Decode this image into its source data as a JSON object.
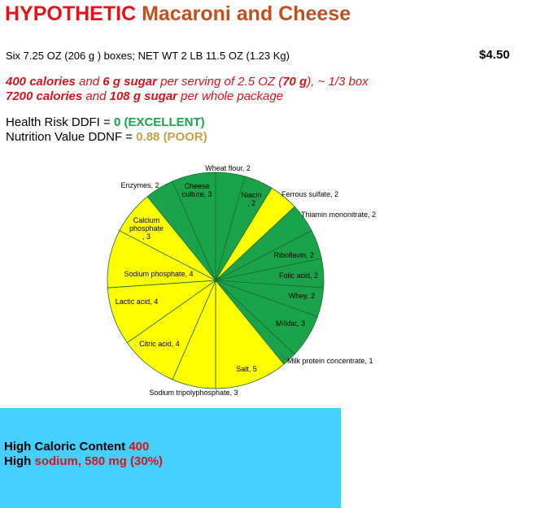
{
  "header": {
    "title_part1": "HYPOTHETIC",
    "title_part2": "Macaroni and Cheese",
    "package": "Six 7.25 OZ (206 g ) boxes;  NET WT 2 LB 11.5 OZ (1.23 Kg)",
    "price": "$4.50"
  },
  "calories": {
    "serving_cal": "400 calories",
    "serving_and": " and ",
    "serving_sugar": "6 g sugar",
    "serving_rest1": " per serving of  2.5 OZ  (",
    "serving_grams": "70 g",
    "serving_rest2": "), ~ 1/3 box",
    "package_cal": "7200 calories",
    "package_and": " and ",
    "package_sugar": "108 g sugar",
    "package_rest": " per whole package"
  },
  "scores": {
    "risk_label": "Health Risk DDFI = ",
    "risk_value": "0 (EXCELLENT)",
    "nutrition_label": "Nutrition Value DDNF = ",
    "nutrition_value": "0.88 (POOR)"
  },
  "colors": {
    "green": "#1aa34a",
    "yellow": "#ffff00",
    "panel": "#45cfff",
    "red": "#d4151b",
    "gold": "#c3a24a",
    "title_red": "#e8111a",
    "title_brown": "#c0501f"
  },
  "chart_data": {
    "type": "pie",
    "slices": [
      {
        "label": "Wheat flour, 2",
        "value": 2,
        "color": "green"
      },
      {
        "label": "Niacin, 2",
        "value": 2,
        "color": "green"
      },
      {
        "label": "Ferrous sulfate, 2",
        "value": 2,
        "color": "yellow"
      },
      {
        "label": "Thiamin mononitrate, 2",
        "value": 2,
        "color": "green"
      },
      {
        "label": "Riboflavin, 2",
        "value": 2,
        "color": "green"
      },
      {
        "label": "Folic acid, 2",
        "value": 2,
        "color": "green"
      },
      {
        "label": "Whey, 2",
        "value": 2,
        "color": "green"
      },
      {
        "label": "Milkfat, 3",
        "value": 3,
        "color": "green"
      },
      {
        "label": "Milk protein concentrate, 1",
        "value": 1,
        "color": "green"
      },
      {
        "label": "Salt, 5",
        "value": 5,
        "color": "yellow"
      },
      {
        "label": "Sodium tripolyphosphate, 3",
        "value": 3,
        "color": "yellow"
      },
      {
        "label": "Citric acid, 4",
        "value": 4,
        "color": "yellow"
      },
      {
        "label": "Lactic acid, 4",
        "value": 4,
        "color": "yellow"
      },
      {
        "label": "Sodium phosphate, 4",
        "value": 4,
        "color": "yellow"
      },
      {
        "label": "Calcium phosphate, 3",
        "value": 3,
        "color": "yellow"
      },
      {
        "label": "Enzymes, 2",
        "value": 2,
        "color": "green"
      },
      {
        "label": "Cheese culture, 3",
        "value": 3,
        "color": "green"
      }
    ]
  },
  "warnings": {
    "caloric_label": "High Caloric Content ",
    "caloric_value": "400",
    "sodium_label": "High ",
    "sodium_value": "sodium, 580 mg (30%)"
  }
}
